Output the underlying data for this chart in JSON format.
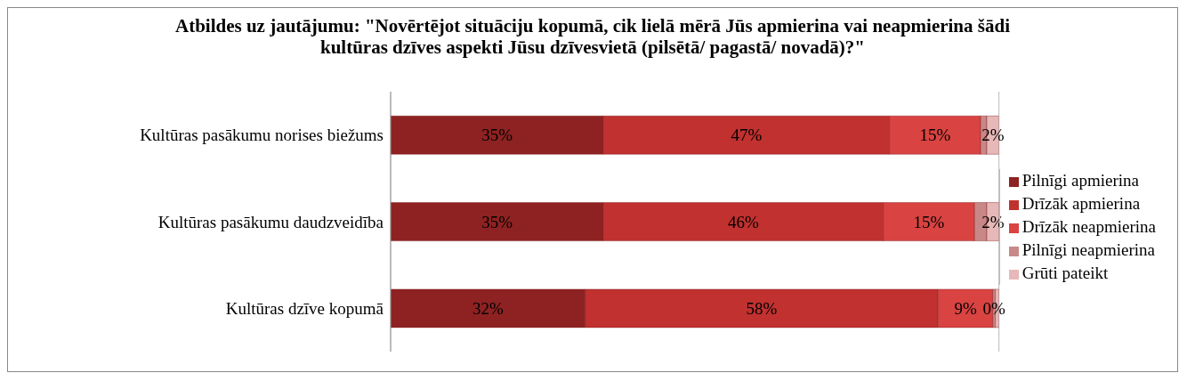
{
  "chart_data": {
    "type": "bar",
    "orientation": "horizontal",
    "stacked": true,
    "title": "Atbildes uz jautājumu: \"Novērtējot situāciju kopumā, cik lielā mērā Jūs apmierina vai neapmierina šādi kultūras dzīves aspekti Jūsu dzīvesvietā (pilsētā/ pagastā/ novadā)?\"",
    "categories": [
      "Kultūras pasākumu norises biežums",
      "Kultūras pasākumu daudzveidība",
      "Kultūras dzīve kopumā"
    ],
    "series": [
      {
        "name": "Pilnīgi apmierina",
        "color": "#8e2222",
        "values": [
          35,
          35,
          32
        ],
        "value_labels": [
          "35%",
          "35%",
          "32%"
        ]
      },
      {
        "name": "Drīzāk apmierina",
        "color": "#c0312f",
        "values": [
          47,
          46,
          58
        ],
        "value_labels": [
          "47%",
          "46%",
          "58%"
        ]
      },
      {
        "name": "Drīzāk neapmierina",
        "color": "#d94341",
        "values": [
          15,
          15,
          9
        ],
        "value_labels": [
          "15%",
          "15%",
          "9%"
        ]
      },
      {
        "name": "Pilnīgi neapmierina",
        "color": "#c98888",
        "values": [
          1,
          2,
          0.4
        ],
        "value_labels": [
          null,
          null,
          "0%"
        ]
      },
      {
        "name": "Grūti pateikt",
        "color": "#e6b8b8",
        "values": [
          2,
          2,
          0.6
        ],
        "value_labels": [
          "2%",
          "2%",
          null
        ]
      }
    ],
    "xlim": [
      0,
      100
    ],
    "tick_labels": "y",
    "grid": "x",
    "legend": "right"
  }
}
